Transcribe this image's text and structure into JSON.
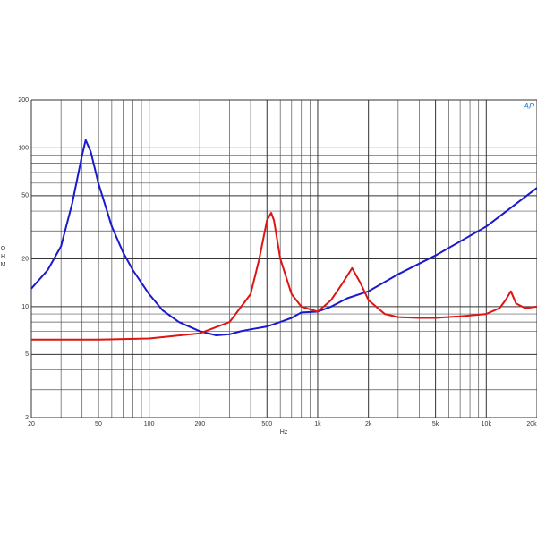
{
  "chart_data": {
    "type": "line",
    "x_label": "Hz",
    "y_label": "OHM",
    "logo": "AP",
    "xlog": true,
    "ylog": true,
    "grid": true,
    "xlim": [
      20,
      20000
    ],
    "ylim": [
      2,
      200
    ],
    "xticks": [
      20,
      50,
      100,
      200,
      500,
      {
        "value": 1000,
        "label": "1k"
      },
      {
        "value": 2000,
        "label": "2k"
      },
      {
        "value": 5000,
        "label": "5k"
      },
      {
        "value": 10000,
        "label": "10k"
      },
      {
        "value": 20000,
        "label": "20k"
      }
    ],
    "yticks": [
      2,
      5,
      10,
      20,
      50,
      100,
      200
    ],
    "xminorticks": [
      30,
      40,
      60,
      70,
      80,
      90,
      300,
      400,
      600,
      700,
      800,
      900,
      3000,
      4000,
      6000,
      7000,
      8000,
      9000
    ],
    "yminorticks": [
      3,
      4,
      6,
      7,
      8,
      9,
      30,
      40,
      60,
      70,
      80,
      90
    ],
    "series": [
      {
        "color": "#1a1acc",
        "x": [
          20,
          25,
          30,
          35,
          40,
          42,
          45,
          50,
          60,
          70,
          80,
          100,
          120,
          150,
          200,
          250,
          300,
          350,
          400,
          500,
          600,
          700,
          800,
          1000,
          1200,
          1500,
          2000,
          3000,
          5000,
          10000,
          20000
        ],
        "values": [
          13,
          17,
          24,
          45,
          90,
          112,
          95,
          60,
          32,
          22,
          17,
          12,
          9.5,
          8,
          7,
          6.6,
          6.7,
          7,
          7.2,
          7.5,
          8,
          8.5,
          9.2,
          9.3,
          10,
          11.3,
          12.5,
          16,
          21,
          32,
          56
        ]
      },
      {
        "color": "#dd1515",
        "x": [
          20,
          50,
          100,
          200,
          300,
          400,
          450,
          500,
          530,
          550,
          600,
          700,
          800,
          1000,
          1200,
          1400,
          1600,
          1800,
          2000,
          2500,
          3000,
          4000,
          5000,
          7000,
          10000,
          12000,
          13000,
          14000,
          15000,
          17000,
          20000
        ],
        "values": [
          6.2,
          6.2,
          6.3,
          6.8,
          8,
          12,
          20,
          35,
          39,
          35,
          20,
          12,
          10,
          9.3,
          11,
          14,
          17.5,
          14,
          11,
          9,
          8.6,
          8.5,
          8.5,
          8.7,
          9,
          9.8,
          11,
          12.5,
          10.5,
          9.8,
          10
        ]
      }
    ]
  }
}
